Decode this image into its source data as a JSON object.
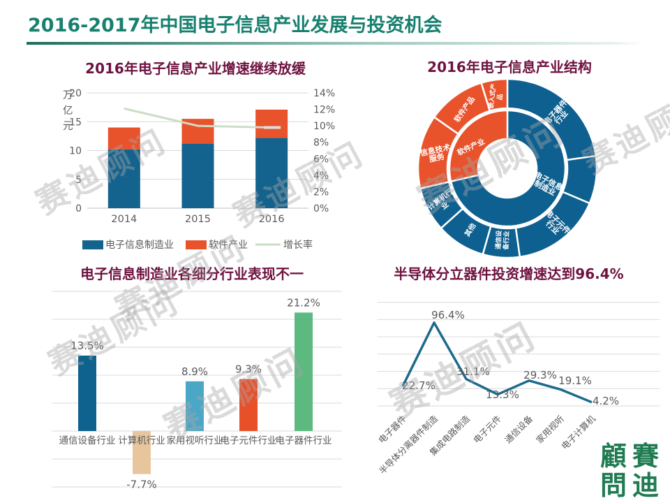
{
  "header": {
    "title": "2016-2017年中国电子信息产业发展与投资机会"
  },
  "watermark": {
    "text": "赛迪顾问"
  },
  "logo": {
    "chars": [
      "顧",
      "賽",
      "問",
      "迪"
    ]
  },
  "colors": {
    "main_title": "#17806f",
    "chart_title": "#6e1240",
    "axis_text": "#595959",
    "grid": "#d9d9d9",
    "seal_green": "#1f7b51"
  },
  "chart_data": [
    {
      "type": "bar",
      "title": "2016年电子信息产业增速继续放缓",
      "categories": [
        "2014",
        "2015",
        "2016"
      ],
      "series": [
        {
          "name": "电子信息制造业",
          "kind": "bar",
          "color": "#14628e",
          "values": [
            10.2,
            11.2,
            12.2
          ]
        },
        {
          "name": "软件产业",
          "kind": "bar",
          "color": "#e8532c",
          "values": [
            3.8,
            4.3,
            4.9
          ]
        },
        {
          "name": "增长率",
          "kind": "line",
          "axis": "right",
          "color": "#cadec6",
          "values": [
            12.1,
            10.0,
            9.8
          ]
        }
      ],
      "left_axis": {
        "unit": "万亿元",
        "ticks": [
          0,
          5,
          10,
          15,
          20
        ],
        "max": 20
      },
      "right_axis": {
        "ticks": [
          "0%",
          "2%",
          "4%",
          "6%",
          "8%",
          "10%",
          "12%",
          "14%"
        ],
        "max": 14
      },
      "legend_position": "bottom",
      "grid": true
    },
    {
      "type": "pie",
      "subtype": "sunburst",
      "title": "2016年电子信息产业结构",
      "rings": {
        "inner": [
          {
            "label": "电子信息制造业",
            "lines": [
              "电子信息",
              "制造业"
            ],
            "color": "#0e6090",
            "start_deg": 0,
            "end_deg": 257,
            "label_angle": 113,
            "label_radius": 61,
            "label_rot": 28,
            "font": 11
          },
          {
            "label": "软件产业",
            "lines": [
              "软件产业"
            ],
            "color": "#e8532c",
            "start_deg": 257,
            "end_deg": 360,
            "label_angle": 300,
            "label_radius": 60,
            "label_rot": -25,
            "font": 10.5
          }
        ],
        "outer": [
          {
            "label": "电子器件行业",
            "lines": [
              "电子器件",
              "行业"
            ],
            "color": "#0e6090",
            "start_deg": 0,
            "end_deg": 82,
            "label_angle": 44,
            "label_radius": 106,
            "label_rot": -48,
            "font": 11
          },
          {
            "label": "",
            "lines": [],
            "color": "#0e6090",
            "start_deg": 82,
            "end_deg": 113,
            "label_angle": 98,
            "label_radius": 106,
            "label_rot": 0,
            "font": 10
          },
          {
            "label": "电子元件行业",
            "lines": [
              "电子元件",
              "行业"
            ],
            "color": "#0e6090",
            "start_deg": 113,
            "end_deg": 172,
            "label_angle": 140,
            "label_radius": 106,
            "label_rot": 44,
            "font": 11
          },
          {
            "label": "通信设备行业",
            "lines": [
              "通信设",
              "备行业"
            ],
            "color": "#0e6090",
            "start_deg": 172,
            "end_deg": 196,
            "label_angle": 184,
            "label_radius": 103,
            "label_rot": -87,
            "font": 9
          },
          {
            "label": "其他",
            "lines": [
              "其他"
            ],
            "color": "#0e6090",
            "start_deg": 196,
            "end_deg": 228,
            "label_angle": 211,
            "label_radius": 103,
            "label_rot": -58,
            "font": 10
          },
          {
            "label": "计算机行业",
            "lines": [
              "计算机行",
              "业"
            ],
            "color": "#0e6090",
            "start_deg": 228,
            "end_deg": 257,
            "label_angle": 242,
            "label_radius": 105,
            "label_rot": -38,
            "font": 10.5
          },
          {
            "label": "信息技术服务",
            "lines": [
              "信息技术",
              "服务"
            ],
            "color": "#e8532c",
            "start_deg": 257,
            "end_deg": 305,
            "label_angle": 281,
            "label_radius": 104,
            "label_rot": -12,
            "font": 11
          },
          {
            "label": "软件产品",
            "lines": [
              "软件产品"
            ],
            "color": "#e8532c",
            "start_deg": 305,
            "end_deg": 343,
            "label_angle": 324,
            "label_radius": 104,
            "label_rot": -55,
            "font": 10.5
          },
          {
            "label": "嵌入式产品",
            "lines": [
              "嵌入式产",
              "品"
            ],
            "color": "#e8532c",
            "start_deg": 343,
            "end_deg": 360,
            "label_angle": 351,
            "label_radius": 104,
            "label_rot": -83,
            "font": 9
          }
        ]
      }
    },
    {
      "type": "bar",
      "title": "电子信息制造业各细分行业表现不一",
      "categories": [
        "通信设备行业",
        "计算机行业",
        "家用视听行业",
        "电子元件行业",
        "电子器件行业"
      ],
      "values": [
        13.5,
        -7.7,
        8.9,
        9.3,
        21.2
      ],
      "value_labels": [
        "13.5%",
        "-7.7%",
        "8.9%",
        "9.3%",
        "21.2%"
      ],
      "bar_colors": [
        "#0f618e",
        "#e7c69e",
        "#4aa7c6",
        "#e8502a",
        "#5cb980"
      ],
      "ylim": [
        -10,
        25
      ],
      "grid_step": 5,
      "grid": true
    },
    {
      "type": "line",
      "title": "半导体分立器件投资增速达到96.4%",
      "categories": [
        "电子器件",
        "半导体分离器件制造",
        "集成电路制造",
        "电子元件",
        "通信设备",
        "家用视听",
        "电子计算机"
      ],
      "values": [
        22.7,
        96.4,
        31.1,
        13.3,
        29.3,
        19.1,
        4.2
      ],
      "value_labels": [
        "22.7%",
        "96.4%",
        "31.1%",
        "13.3%",
        "29.3%",
        "19.1%",
        "4.2%"
      ],
      "color": "#1d6a8c",
      "ylim": [
        0,
        120
      ],
      "grid_step": 20,
      "grid": true
    }
  ]
}
